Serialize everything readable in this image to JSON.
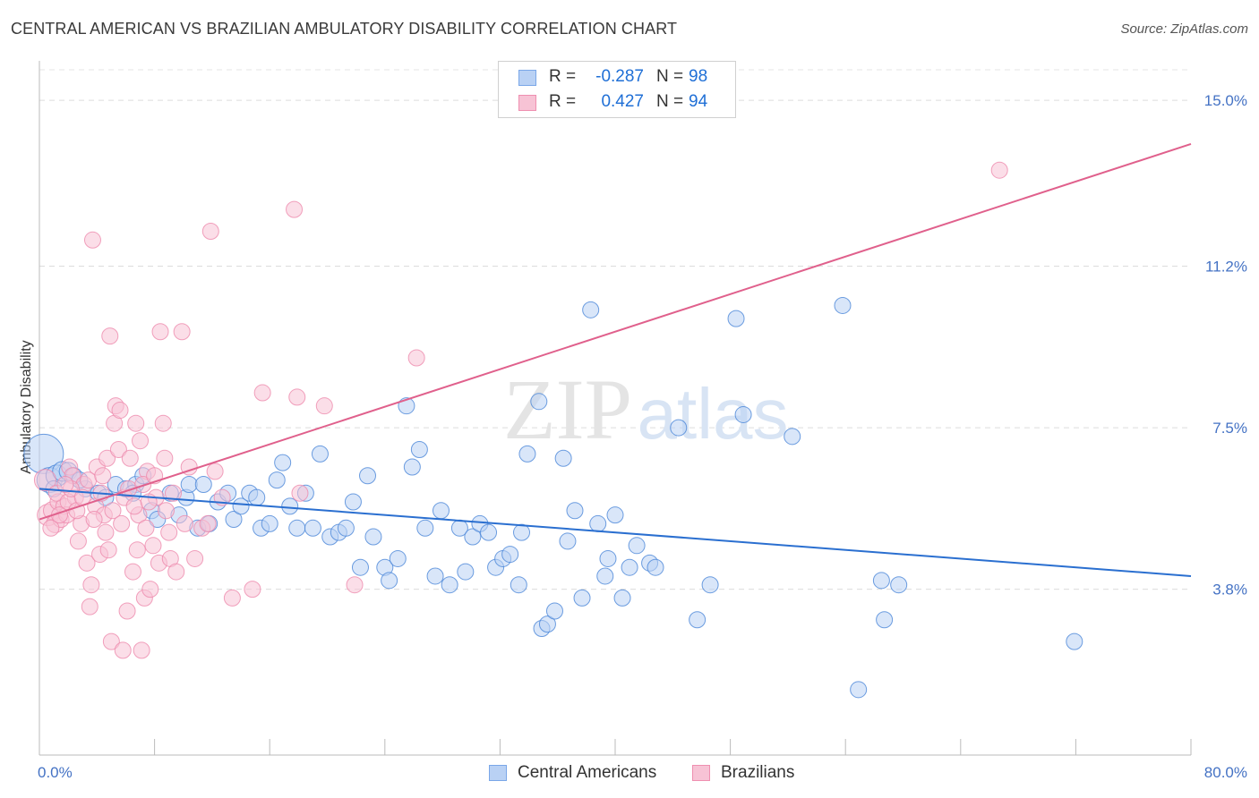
{
  "title": "CENTRAL AMERICAN VS BRAZILIAN AMBULATORY DISABILITY CORRELATION CHART",
  "source": "Source: ZipAtlas.com",
  "watermark": {
    "zip": "ZIP",
    "atlas": "atlas"
  },
  "legend": {
    "rows": [
      {
        "r_label": "R =",
        "r_value": "-0.287",
        "n_label": "N =",
        "n_value": "98",
        "color": "#7aa7e8",
        "fill": "#b9d1f4"
      },
      {
        "r_label": "R =",
        "r_value": "0.427",
        "n_label": "N =",
        "n_value": "94",
        "color": "#ef8fb0",
        "fill": "#f7c3d5"
      }
    ]
  },
  "bottom_legend": [
    {
      "label": "Central Americans",
      "color": "#7aa7e8",
      "fill": "#b9d1f4"
    },
    {
      "label": "Brazilians",
      "color": "#ef8fb0",
      "fill": "#f7c3d5"
    }
  ],
  "chart_data": {
    "type": "scatter",
    "title": "CENTRAL AMERICAN VS BRAZILIAN AMBULATORY DISABILITY CORRELATION CHART",
    "xlabel": "",
    "ylabel": "Ambulatory Disability",
    "xlim": [
      0,
      80
    ],
    "ylim": [
      0,
      15.7
    ],
    "x_tick_labels": [
      "0.0%",
      "80.0%"
    ],
    "y_ticks": [
      3.8,
      7.5,
      11.2,
      15.0
    ],
    "y_tick_labels": [
      "3.8%",
      "7.5%",
      "11.2%",
      "15.0%"
    ],
    "grid": true,
    "series": [
      {
        "name": "Central Americans",
        "color": "#4a86d8",
        "fill": "#b9d1f4",
        "trend": {
          "x": [
            0,
            80
          ],
          "y": [
            6.1,
            4.1
          ],
          "color": "#2a6fd0"
        },
        "points": [
          [
            0.3,
            6.9,
            22
          ],
          [
            0.7,
            6.3,
            14
          ],
          [
            1.2,
            6.4,
            12
          ],
          [
            1.6,
            6.5,
            11
          ],
          [
            2.0,
            6.5,
            10
          ],
          [
            2.4,
            6.4,
            9
          ],
          [
            3.2,
            6.1,
            9
          ],
          [
            4.1,
            6.0,
            9
          ],
          [
            5.3,
            6.2,
            9
          ],
          [
            6.0,
            6.1,
            9
          ],
          [
            6.7,
            6.2,
            9
          ],
          [
            7.2,
            6.4,
            9
          ],
          [
            6.5,
            6.0,
            9
          ],
          [
            7.8,
            5.6,
            9
          ],
          [
            8.2,
            5.4,
            9
          ],
          [
            9.1,
            6.0,
            9
          ],
          [
            9.7,
            5.5,
            9
          ],
          [
            10.2,
            5.9,
            9
          ],
          [
            10.4,
            6.2,
            9
          ],
          [
            11.0,
            5.2,
            9
          ],
          [
            11.4,
            6.2,
            9
          ],
          [
            11.8,
            5.3,
            9
          ],
          [
            12.4,
            5.8,
            9
          ],
          [
            13.1,
            6.0,
            9
          ],
          [
            13.5,
            5.4,
            9
          ],
          [
            14.0,
            5.7,
            9
          ],
          [
            14.6,
            6.0,
            9
          ],
          [
            15.1,
            5.9,
            9
          ],
          [
            15.4,
            5.2,
            9
          ],
          [
            16.0,
            5.3,
            9
          ],
          [
            16.5,
            6.3,
            9
          ],
          [
            16.9,
            6.7,
            9
          ],
          [
            17.4,
            5.7,
            9
          ],
          [
            17.9,
            5.2,
            9
          ],
          [
            18.5,
            6.0,
            9
          ],
          [
            19.0,
            5.2,
            9
          ],
          [
            19.5,
            6.9,
            9
          ],
          [
            20.2,
            5.0,
            9
          ],
          [
            20.8,
            5.1,
            9
          ],
          [
            21.3,
            5.2,
            9
          ],
          [
            21.8,
            5.8,
            9
          ],
          [
            22.3,
            4.3,
            9
          ],
          [
            22.8,
            6.4,
            9
          ],
          [
            23.2,
            5.0,
            9
          ],
          [
            24.0,
            4.3,
            9
          ],
          [
            24.3,
            4.0,
            9
          ],
          [
            24.9,
            4.5,
            9
          ],
          [
            25.5,
            8.0,
            9
          ],
          [
            25.9,
            6.6,
            9
          ],
          [
            26.4,
            7.0,
            9
          ],
          [
            26.8,
            5.2,
            9
          ],
          [
            27.5,
            4.1,
            9
          ],
          [
            27.9,
            5.6,
            9
          ],
          [
            28.5,
            3.9,
            9
          ],
          [
            29.2,
            5.2,
            9
          ],
          [
            29.6,
            4.2,
            9
          ],
          [
            30.1,
            5.0,
            9
          ],
          [
            30.6,
            5.3,
            9
          ],
          [
            31.2,
            5.1,
            9
          ],
          [
            31.7,
            4.3,
            9
          ],
          [
            32.2,
            4.5,
            9
          ],
          [
            32.7,
            4.6,
            9
          ],
          [
            33.3,
            3.9,
            9
          ],
          [
            33.5,
            5.1,
            9
          ],
          [
            33.9,
            6.9,
            9
          ],
          [
            34.7,
            8.1,
            9
          ],
          [
            34.9,
            2.9,
            9
          ],
          [
            35.3,
            3.0,
            9
          ],
          [
            35.8,
            3.3,
            9
          ],
          [
            36.4,
            6.8,
            9
          ],
          [
            36.7,
            4.9,
            9
          ],
          [
            37.2,
            5.6,
            9
          ],
          [
            37.7,
            3.6,
            9
          ],
          [
            38.3,
            10.2,
            9
          ],
          [
            38.8,
            5.3,
            9
          ],
          [
            39.3,
            4.1,
            9
          ],
          [
            39.5,
            4.5,
            9
          ],
          [
            40.0,
            5.5,
            9
          ],
          [
            40.5,
            3.6,
            9
          ],
          [
            41.0,
            4.3,
            9
          ],
          [
            41.5,
            4.8,
            9
          ],
          [
            42.4,
            4.4,
            9
          ],
          [
            42.8,
            4.3,
            9
          ],
          [
            44.4,
            7.5,
            9
          ],
          [
            45.7,
            3.1,
            9
          ],
          [
            46.6,
            3.9,
            9
          ],
          [
            48.4,
            10.0,
            9
          ],
          [
            48.9,
            7.8,
            9
          ],
          [
            52.3,
            7.3,
            9
          ],
          [
            55.8,
            10.3,
            9
          ],
          [
            56.9,
            1.5,
            9
          ],
          [
            58.5,
            4.0,
            9
          ],
          [
            58.7,
            3.1,
            9
          ],
          [
            59.7,
            3.9,
            9
          ],
          [
            71.9,
            2.6,
            9
          ],
          [
            1.0,
            6.1,
            9
          ],
          [
            2.8,
            6.3,
            9
          ],
          [
            4.6,
            5.9,
            9
          ]
        ]
      },
      {
        "name": "Brazilians",
        "color": "#ee8aac",
        "fill": "#f7c3d5",
        "trend": {
          "x": [
            0,
            80
          ],
          "y": [
            5.4,
            14.0
          ],
          "color": "#e0608c"
        },
        "points": [
          [
            0.4,
            6.3,
            12
          ],
          [
            0.6,
            5.5,
            12
          ],
          [
            0.9,
            5.6,
            10
          ],
          [
            1.1,
            5.3,
            10
          ],
          [
            1.3,
            5.8,
            9
          ],
          [
            1.5,
            5.4,
            9
          ],
          [
            1.7,
            5.7,
            9
          ],
          [
            1.9,
            5.5,
            9
          ],
          [
            2.1,
            6.6,
            9
          ],
          [
            2.3,
            6.4,
            9
          ],
          [
            2.5,
            5.9,
            9
          ],
          [
            2.7,
            4.9,
            9
          ],
          [
            2.9,
            5.3,
            9
          ],
          [
            3.1,
            6.2,
            9
          ],
          [
            3.3,
            4.4,
            9
          ],
          [
            3.5,
            3.4,
            9
          ],
          [
            3.6,
            3.9,
            9
          ],
          [
            3.7,
            11.8,
            9
          ],
          [
            3.9,
            5.7,
            9
          ],
          [
            4.0,
            6.6,
            9
          ],
          [
            4.2,
            4.6,
            9
          ],
          [
            4.3,
            6.0,
            9
          ],
          [
            4.5,
            5.5,
            9
          ],
          [
            4.6,
            5.1,
            9
          ],
          [
            4.7,
            6.8,
            9
          ],
          [
            4.8,
            4.7,
            9
          ],
          [
            4.9,
            9.6,
            9
          ],
          [
            5.0,
            2.6,
            9
          ],
          [
            5.2,
            7.6,
            9
          ],
          [
            5.3,
            8.0,
            9
          ],
          [
            5.5,
            7.0,
            9
          ],
          [
            5.6,
            7.9,
            9
          ],
          [
            5.8,
            2.4,
            9
          ],
          [
            5.9,
            5.9,
            9
          ],
          [
            6.1,
            3.3,
            9
          ],
          [
            6.3,
            6.8,
            9
          ],
          [
            6.5,
            4.2,
            9
          ],
          [
            6.7,
            7.6,
            9
          ],
          [
            6.8,
            4.7,
            9
          ],
          [
            6.9,
            5.5,
            9
          ],
          [
            7.0,
            7.2,
            9
          ],
          [
            7.1,
            2.4,
            9
          ],
          [
            7.3,
            3.6,
            9
          ],
          [
            7.4,
            5.2,
            9
          ],
          [
            7.5,
            6.5,
            9
          ],
          [
            7.7,
            3.8,
            9
          ],
          [
            7.9,
            4.8,
            9
          ],
          [
            8.1,
            5.9,
            9
          ],
          [
            8.3,
            4.4,
            9
          ],
          [
            8.4,
            9.7,
            9
          ],
          [
            8.6,
            7.6,
            9
          ],
          [
            8.7,
            6.8,
            9
          ],
          [
            9.0,
            5.1,
            9
          ],
          [
            9.1,
            4.5,
            9
          ],
          [
            9.5,
            4.2,
            9
          ],
          [
            9.9,
            9.7,
            9
          ],
          [
            10.1,
            5.3,
            9
          ],
          [
            10.4,
            6.6,
            9
          ],
          [
            10.8,
            4.5,
            9
          ],
          [
            11.3,
            5.2,
            9
          ],
          [
            11.7,
            5.3,
            9
          ],
          [
            11.9,
            12.0,
            9
          ],
          [
            12.2,
            6.5,
            9
          ],
          [
            12.7,
            5.9,
            9
          ],
          [
            13.4,
            3.6,
            9
          ],
          [
            14.8,
            3.8,
            9
          ],
          [
            15.5,
            8.3,
            9
          ],
          [
            17.7,
            12.5,
            9
          ],
          [
            17.9,
            8.2,
            9
          ],
          [
            18.1,
            6.0,
            9
          ],
          [
            19.8,
            8.0,
            9
          ],
          [
            21.9,
            3.9,
            9
          ],
          [
            26.2,
            9.1,
            9
          ],
          [
            66.7,
            13.4,
            9
          ],
          [
            0.8,
            5.2,
            9
          ],
          [
            1.2,
            6.0,
            9
          ],
          [
            1.4,
            5.5,
            9
          ],
          [
            2.0,
            5.8,
            9
          ],
          [
            2.2,
            6.1,
            9
          ],
          [
            2.6,
            5.6,
            9
          ],
          [
            3.0,
            5.9,
            9
          ],
          [
            3.4,
            6.3,
            9
          ],
          [
            3.8,
            5.4,
            9
          ],
          [
            4.4,
            6.4,
            9
          ],
          [
            5.1,
            5.6,
            9
          ],
          [
            5.7,
            5.3,
            9
          ],
          [
            6.2,
            6.1,
            9
          ],
          [
            6.6,
            5.7,
            9
          ],
          [
            7.2,
            6.2,
            9
          ],
          [
            7.6,
            5.8,
            9
          ],
          [
            8.0,
            6.4,
            9
          ],
          [
            8.8,
            5.6,
            9
          ],
          [
            9.3,
            6.0,
            9
          ],
          [
            1.8,
            6.2,
            9
          ]
        ]
      }
    ]
  }
}
